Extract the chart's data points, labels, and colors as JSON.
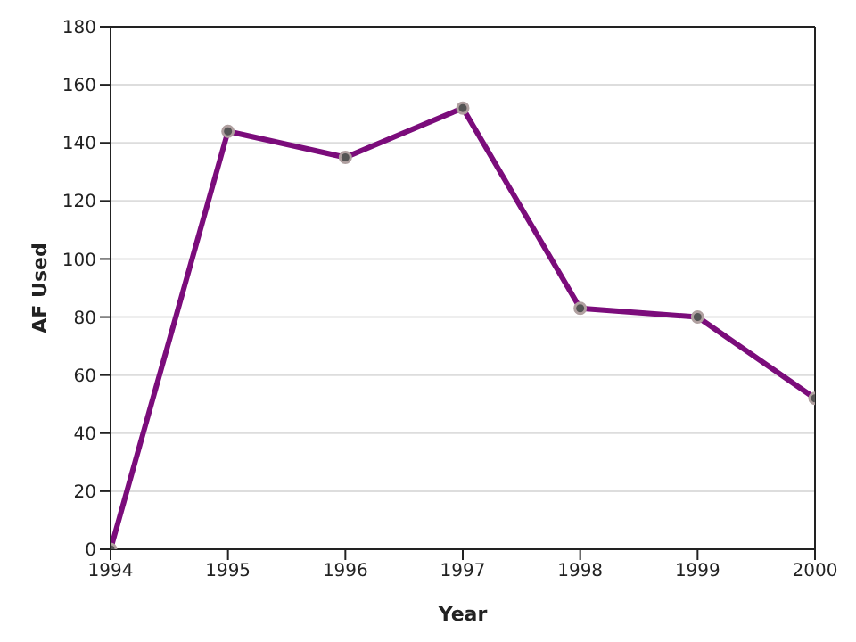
{
  "chart_data": {
    "type": "line",
    "xlabel": "Year",
    "ylabel": "AF Used",
    "x": [
      1994,
      1995,
      1996,
      1997,
      1998,
      1999,
      2000
    ],
    "series": [
      {
        "color": "#7b0c7b",
        "values": [
          0,
          144,
          135,
          152,
          83,
          80,
          52
        ]
      }
    ],
    "xlim": [
      1994,
      2000
    ],
    "xticks": [
      1994,
      1995,
      1996,
      1997,
      1998,
      1999,
      2000
    ],
    "ylim": [
      0,
      180
    ],
    "yticks": [
      0,
      20,
      40,
      60,
      80,
      100,
      120,
      140,
      160,
      180
    ],
    "grid": "y",
    "marker": "circle",
    "line_style": "solid",
    "legend": false
  }
}
